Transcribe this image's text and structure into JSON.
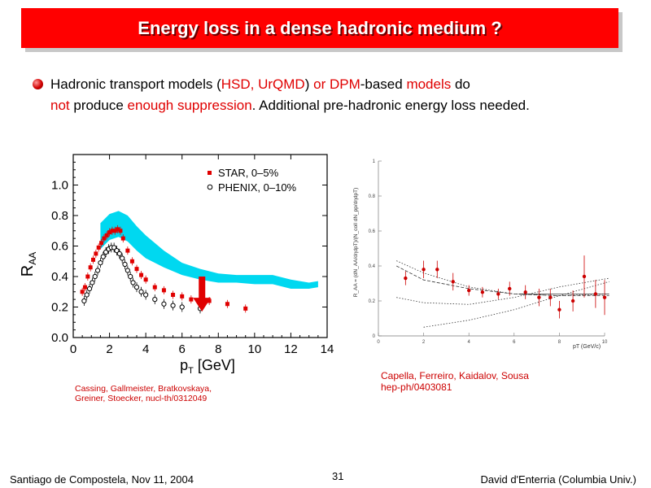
{
  "slide": {
    "title": "Energy loss in a dense hadronic medium ?",
    "bullet": {
      "t1": "Hadronic transport models (",
      "t2": "HSD, UrQMD",
      "t3": ") ",
      "t4": "or DPM",
      "t5": "-based ",
      "t6": "models",
      "t7": " do",
      "t8": "not",
      "t9": " produce ",
      "t10": "enough suppression",
      "t11": ". Additional pre-hadronic energy loss needed."
    },
    "caption_left": [
      "Cassing, Gallmeister, Bratkovskaya,",
      "Greiner, Stoecker, nucl-th/0312049"
    ],
    "caption_right": [
      "Capella, Ferreiro, Kaidalov, Sousa",
      "hep-ph/0403081"
    ],
    "footer": {
      "left": "Santiago de Compostela, Nov 11, 2004",
      "page": "31",
      "right": "David d'Enterria (Columbia Univ.)"
    }
  },
  "chart_data": [
    {
      "type": "scatter",
      "xlabel": "p",
      "xlabel_sub": "T",
      "xlabel_unit": " [GeV]",
      "ylabel": "R",
      "ylabel_sub": "AA",
      "xlim": [
        0,
        14
      ],
      "ylim": [
        0,
        1.2
      ],
      "xticks": [
        0,
        2,
        4,
        6,
        8,
        10,
        12,
        14
      ],
      "yticks": [
        0.0,
        0.2,
        0.4,
        0.6,
        0.8,
        1.0
      ],
      "legend_position": "top-right",
      "colors": {
        "star": "#e00000",
        "band": "#00d8f0",
        "arrow": "#e00000",
        "phenix": "#000000"
      },
      "band": {
        "x": [
          1.5,
          2.0,
          2.5,
          3.0,
          3.5,
          4.0,
          5.0,
          6.0,
          7.0,
          8.0,
          9.0,
          10.0,
          11.0,
          12.0,
          13.0,
          13.5
        ],
        "lower": [
          0.58,
          0.64,
          0.66,
          0.63,
          0.57,
          0.52,
          0.46,
          0.41,
          0.38,
          0.36,
          0.36,
          0.35,
          0.35,
          0.32,
          0.32,
          0.33
        ],
        "upper": [
          0.75,
          0.81,
          0.83,
          0.8,
          0.73,
          0.67,
          0.57,
          0.49,
          0.45,
          0.42,
          0.41,
          0.41,
          0.41,
          0.38,
          0.36,
          0.37
        ]
      },
      "series": [
        {
          "name": "STAR, 0–5%",
          "marker": "filled-square",
          "x": [
            0.5,
            0.65,
            0.8,
            0.95,
            1.1,
            1.25,
            1.4,
            1.55,
            1.7,
            1.85,
            2.0,
            2.15,
            2.3,
            2.45,
            2.6,
            2.75,
            3.0,
            3.25,
            3.5,
            3.75,
            4.0,
            4.5,
            5.0,
            5.5,
            6.0,
            6.5,
            7.5,
            8.5,
            9.5
          ],
          "y": [
            0.3,
            0.33,
            0.4,
            0.46,
            0.51,
            0.55,
            0.59,
            0.62,
            0.65,
            0.67,
            0.69,
            0.7,
            0.7,
            0.71,
            0.7,
            0.65,
            0.57,
            0.5,
            0.45,
            0.41,
            0.38,
            0.33,
            0.31,
            0.28,
            0.27,
            0.25,
            0.24,
            0.22,
            0.19
          ]
        },
        {
          "name": "PHENIX, 0–10%",
          "marker": "open-circle",
          "x": [
            0.6,
            0.75,
            0.9,
            1.05,
            1.2,
            1.35,
            1.5,
            1.65,
            1.8,
            1.95,
            2.1,
            2.25,
            2.4,
            2.55,
            2.7,
            2.85,
            3.0,
            3.15,
            3.3,
            3.5,
            3.75,
            4.0,
            4.5,
            5.0,
            5.5,
            6.0,
            7.0
          ],
          "y": [
            0.24,
            0.28,
            0.32,
            0.36,
            0.4,
            0.44,
            0.49,
            0.53,
            0.56,
            0.58,
            0.59,
            0.59,
            0.57,
            0.55,
            0.52,
            0.48,
            0.44,
            0.4,
            0.36,
            0.33,
            0.3,
            0.28,
            0.25,
            0.22,
            0.21,
            0.2,
            0.19
          ]
        }
      ],
      "annotation": {
        "type": "arrow",
        "x": 7.1,
        "y_from": 0.4,
        "y_to": 0.17
      }
    },
    {
      "type": "scatter",
      "ylabel": "R_AA = (dN_AA/dηdpT)/(N_coll dN_pp/dηdpT)",
      "xlabel": "pT (GeV/c)",
      "xlim": [
        0,
        10
      ],
      "ylim": [
        0,
        1
      ],
      "xticks": [
        0,
        2,
        4,
        6,
        8,
        10
      ],
      "yticks": [
        0,
        0.2,
        0.4,
        0.6,
        0.8,
        1
      ],
      "colors": {
        "points": "#cc0000",
        "curves": "#333333"
      },
      "series": [
        {
          "marker": "filled-circle",
          "x": [
            1.2,
            2.0,
            2.6,
            3.3,
            4.0,
            4.6,
            5.3,
            5.8,
            6.5,
            7.1,
            7.6,
            8.0,
            8.6,
            9.1,
            9.6,
            10.0
          ],
          "y": [
            0.33,
            0.38,
            0.38,
            0.31,
            0.26,
            0.25,
            0.24,
            0.27,
            0.25,
            0.22,
            0.22,
            0.15,
            0.2,
            0.34,
            0.24,
            0.22
          ]
        }
      ],
      "curves": [
        {
          "style": "dotted",
          "x": [
            0.8,
            2.0,
            4.0,
            6.0,
            8.0,
            10.2
          ],
          "y": [
            0.43,
            0.36,
            0.28,
            0.24,
            0.23,
            0.24
          ]
        },
        {
          "style": "dashed",
          "x": [
            0.8,
            2.0,
            4.0,
            6.0,
            8.0,
            10.2
          ],
          "y": [
            0.4,
            0.32,
            0.27,
            0.24,
            0.23,
            0.23
          ]
        },
        {
          "style": "dotted",
          "x": [
            0.8,
            2.0,
            4.0,
            6.0,
            8.0,
            10.2
          ],
          "y": [
            0.22,
            0.19,
            0.18,
            0.22,
            0.28,
            0.33
          ]
        },
        {
          "style": "dotted",
          "x": [
            2.0,
            4.0,
            6.0,
            8.0,
            10.2
          ],
          "y": [
            0.05,
            0.09,
            0.15,
            0.23,
            0.31
          ]
        },
        {
          "style": "solid",
          "x": [
            6.2,
            10.2
          ],
          "y": [
            0.24,
            0.24
          ]
        }
      ]
    }
  ]
}
